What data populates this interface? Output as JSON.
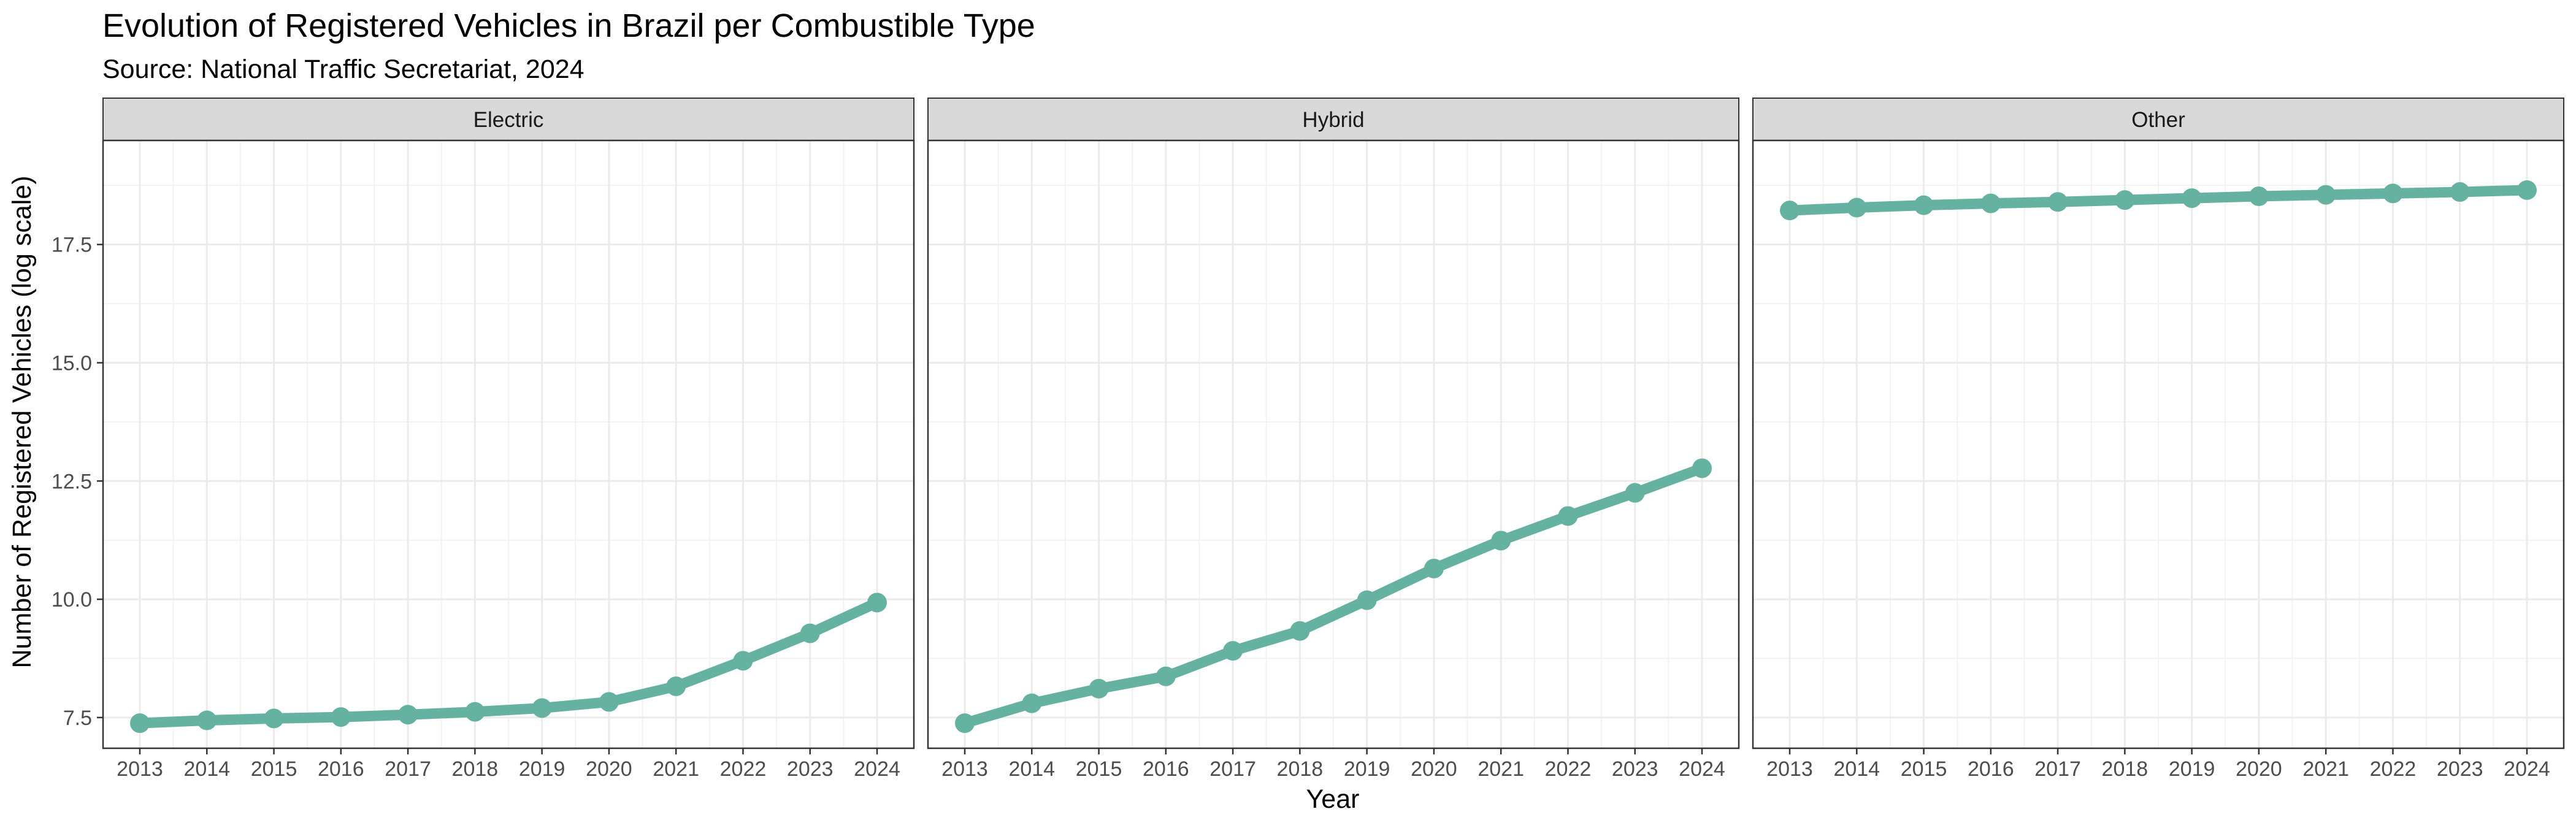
{
  "chart_data": {
    "type": "line",
    "title": "Evolution of Registered Vehicles in Brazil per Combustible Type",
    "subtitle": "Source: National Traffic Secretariat, 2024",
    "xlabel": "Year",
    "ylabel": "Number of Registered Vehicles (log scale)",
    "x": [
      "2013",
      "2014",
      "2015",
      "2016",
      "2017",
      "2018",
      "2019",
      "2020",
      "2021",
      "2022",
      "2023",
      "2024"
    ],
    "y_ticks": [
      "7.5",
      "10.0",
      "12.5",
      "15.0",
      "17.5"
    ],
    "ylim": [
      6.85,
      19.7
    ],
    "grid": true,
    "legend": "none",
    "line_color": "#66B2A0",
    "facets": [
      {
        "name": "Electric",
        "values": [
          7.38,
          7.44,
          7.48,
          7.51,
          7.56,
          7.62,
          7.7,
          7.83,
          8.16,
          8.7,
          9.28,
          9.93
        ]
      },
      {
        "name": "Hybrid",
        "values": [
          7.38,
          7.8,
          8.11,
          8.37,
          8.91,
          9.33,
          9.98,
          10.65,
          11.24,
          11.76,
          12.25,
          12.77
        ]
      },
      {
        "name": "Other",
        "values": [
          18.22,
          18.28,
          18.33,
          18.37,
          18.4,
          18.44,
          18.48,
          18.52,
          18.55,
          18.58,
          18.61,
          18.65
        ]
      }
    ]
  }
}
